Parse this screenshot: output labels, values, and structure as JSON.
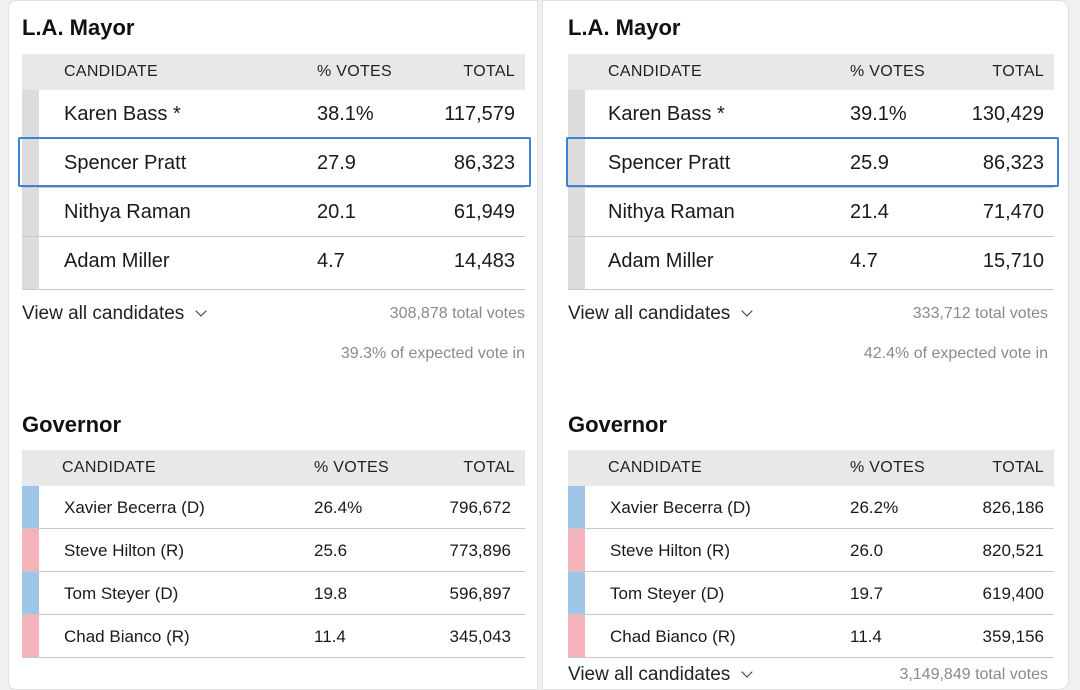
{
  "colors": {
    "democrat": "#9ec5e8",
    "republican": "#f4b3bb",
    "neutral": "#dddddd",
    "highlight": "#3b82d6",
    "header_bg": "#e8e8e8"
  },
  "left": {
    "mayor": {
      "title": "L.A. Mayor",
      "headers": {
        "candidate": "CANDIDATE",
        "votes": "% VOTES",
        "total": "TOTAL"
      },
      "rows": [
        {
          "name": "Karen Bass *",
          "pct": "38.1%",
          "total": "117,579"
        },
        {
          "name": "Spencer Pratt",
          "pct": "27.9",
          "total": "86,323"
        },
        {
          "name": "Nithya Raman",
          "pct": "20.1",
          "total": "61,949"
        },
        {
          "name": "Adam Miller",
          "pct": "4.7",
          "total": "14,483"
        }
      ],
      "view_all": "View all candidates",
      "total_votes": "308,878 total votes",
      "expected": "39.3% of expected vote in"
    },
    "governor": {
      "title": "Governor",
      "headers": {
        "candidate": "CANDIDATE",
        "votes": "% VOTES",
        "total": "TOTAL"
      },
      "rows": [
        {
          "name": "Xavier Becerra (D)",
          "pct": "26.4%",
          "total": "796,672",
          "party": "D"
        },
        {
          "name": "Steve Hilton (R)",
          "pct": "25.6",
          "total": "773,896",
          "party": "R"
        },
        {
          "name": "Tom Steyer (D)",
          "pct": "19.8",
          "total": "596,897",
          "party": "D"
        },
        {
          "name": "Chad Bianco (R)",
          "pct": "11.4",
          "total": "345,043",
          "party": "R"
        }
      ]
    }
  },
  "right": {
    "mayor": {
      "title": "L.A. Mayor",
      "headers": {
        "candidate": "CANDIDATE",
        "votes": "% VOTES",
        "total": "TOTAL"
      },
      "rows": [
        {
          "name": "Karen Bass *",
          "pct": "39.1%",
          "total": "130,429"
        },
        {
          "name": "Spencer Pratt",
          "pct": "25.9",
          "total": "86,323"
        },
        {
          "name": "Nithya Raman",
          "pct": "21.4",
          "total": "71,470"
        },
        {
          "name": "Adam Miller",
          "pct": "4.7",
          "total": "15,710"
        }
      ],
      "view_all": "View all candidates",
      "total_votes": "333,712 total votes",
      "expected": "42.4% of expected vote in"
    },
    "governor": {
      "title": "Governor",
      "headers": {
        "candidate": "CANDIDATE",
        "votes": "% VOTES",
        "total": "TOTAL"
      },
      "rows": [
        {
          "name": "Xavier Becerra (D)",
          "pct": "26.2%",
          "total": "826,186",
          "party": "D"
        },
        {
          "name": "Steve Hilton (R)",
          "pct": "26.0",
          "total": "820,521",
          "party": "R"
        },
        {
          "name": "Tom Steyer (D)",
          "pct": "19.7",
          "total": "619,400",
          "party": "D"
        },
        {
          "name": "Chad Bianco (R)",
          "pct": "11.4",
          "total": "359,156",
          "party": "R"
        }
      ],
      "view_all": "View all candidates",
      "total_votes": "3,149,849 total votes"
    }
  }
}
